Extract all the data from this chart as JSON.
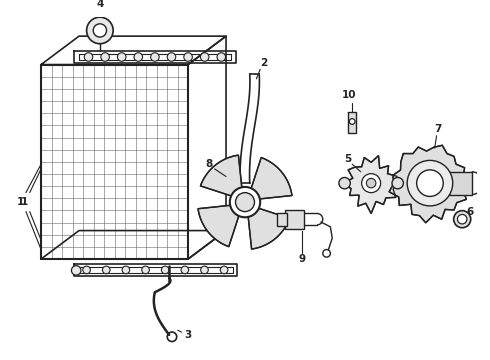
{
  "bg_color": "#ffffff",
  "line_color": "#222222",
  "lw": 1.0,
  "fig_width": 4.9,
  "fig_height": 3.6,
  "dpi": 100
}
